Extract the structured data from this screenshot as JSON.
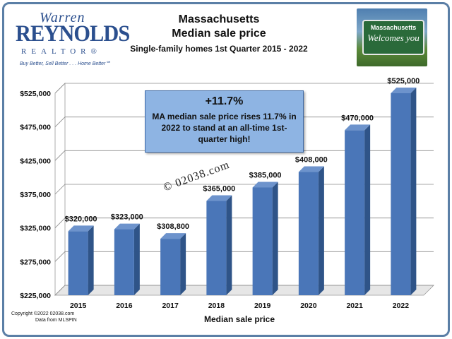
{
  "logo": {
    "warren": "Warren",
    "reynolds": "REYNOLDS",
    "realtor": "REALTOR®",
    "tagline": "Buy Better, Sell Better . . . Home Better℠"
  },
  "header": {
    "line1": "Massachusetts",
    "line2": "Median sale price",
    "line3": "Single-family homes 1st Quarter 2015 - 2022"
  },
  "sign": {
    "line1": "Massachusetts",
    "line2": "Welcomes you"
  },
  "callout": {
    "headline": "+11.7%",
    "body": "MA median sale price rises 11.7% in 2022 to stand at an all-time 1st-quarter high!"
  },
  "watermark": "© 02038.com",
  "footer": {
    "copyright": "Copyright ©2022 02038.com",
    "source": "Data from MLSPIN"
  },
  "chart_data": {
    "type": "bar",
    "categories": [
      "2015",
      "2016",
      "2017",
      "2018",
      "2019",
      "2020",
      "2021",
      "2022"
    ],
    "values": [
      320000,
      323000,
      308800,
      365000,
      385000,
      408000,
      470000,
      525000
    ],
    "data_labels": [
      "$320,000",
      "$323,000",
      "$308,800",
      "$365,000",
      "$385,000",
      "$408,000",
      "$470,000",
      "$525,000"
    ],
    "yticks": [
      "$225,000",
      "$275,000",
      "$325,000",
      "$375,000",
      "$425,000",
      "$475,000",
      "$525,000"
    ],
    "ytick_values": [
      225000,
      275000,
      325000,
      375000,
      425000,
      475000,
      525000
    ],
    "ylim": [
      225000,
      525000
    ],
    "xlabel": "Median sale price",
    "ylabel": "",
    "bar_color": "#4a76b8",
    "grid": true,
    "legend": "none"
  }
}
